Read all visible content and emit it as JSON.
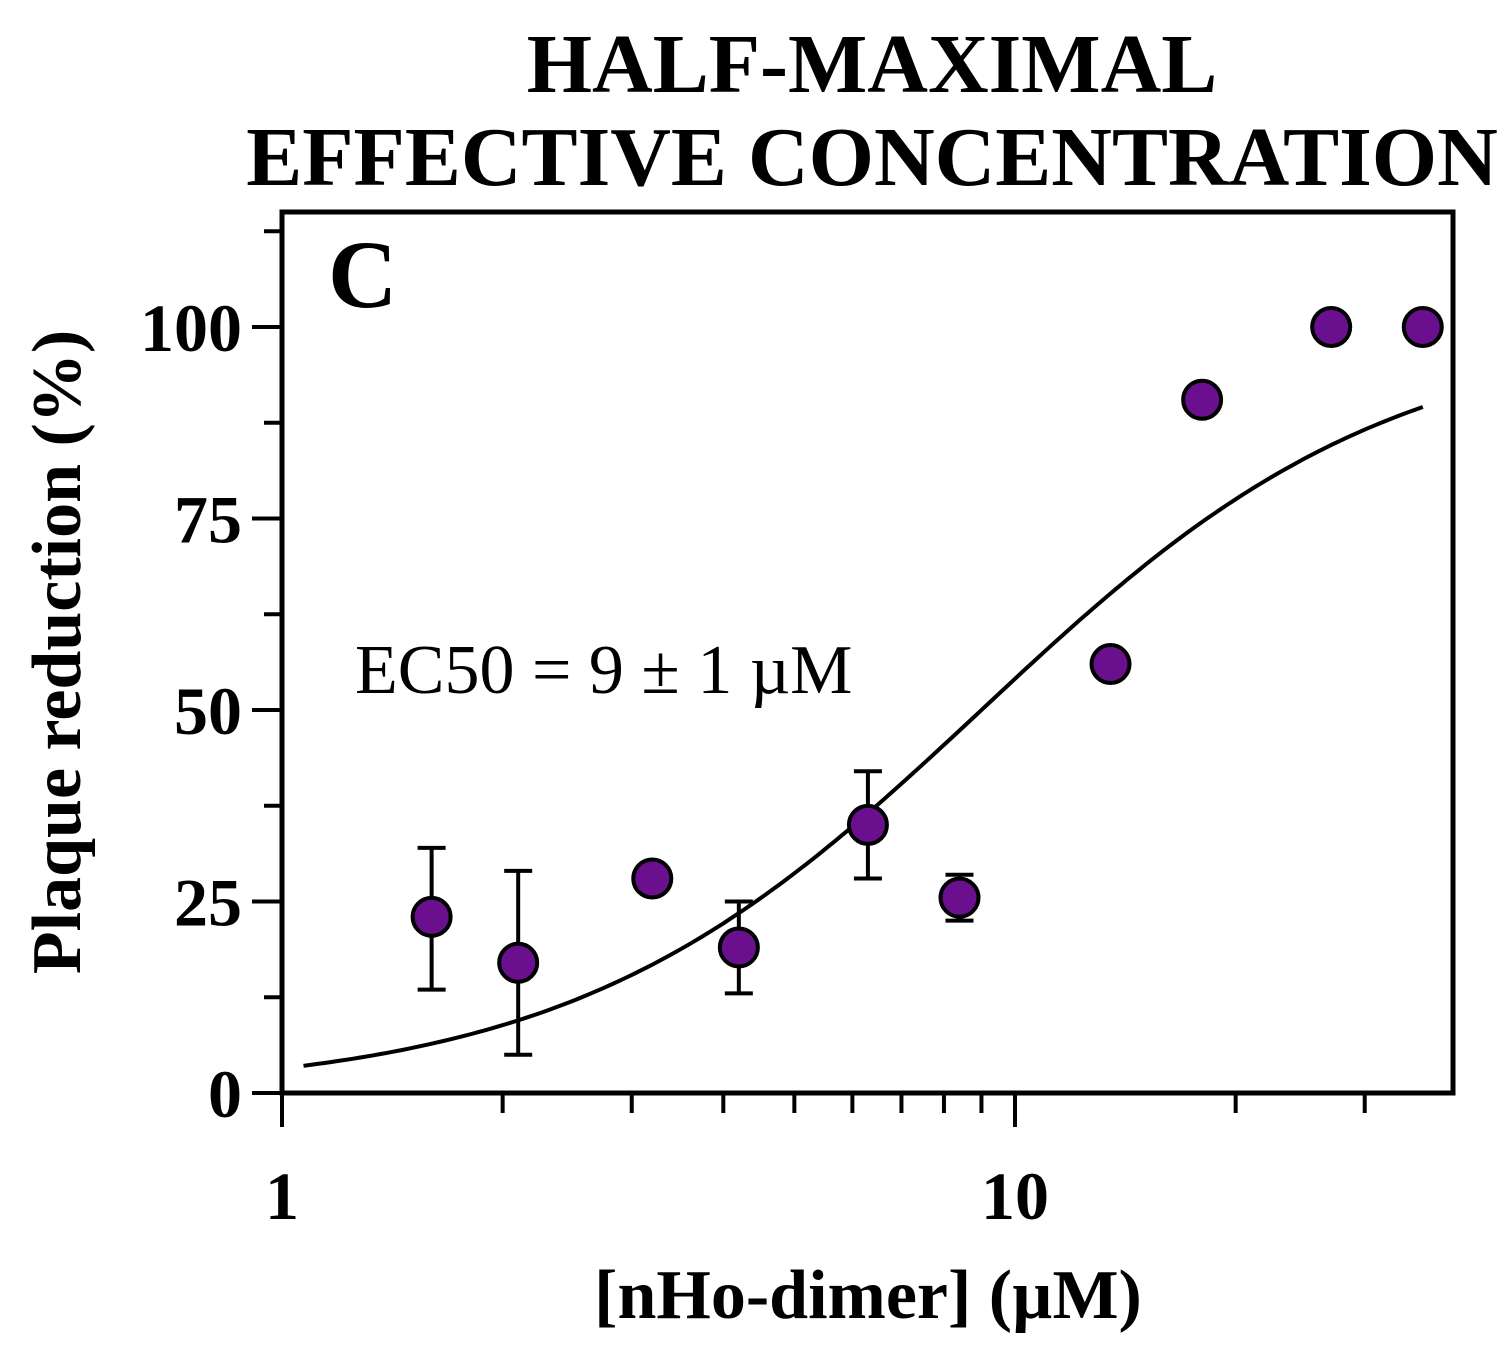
{
  "chart_data": {
    "type": "scatter",
    "title_lines": [
      "HALF-MAXIMAL",
      "EFFECTIVE CONCENTRATION"
    ],
    "panel_label": "C",
    "xlabel": "[nHo-dimer] (µM)",
    "ylabel": "Plaque reduction (%)",
    "xscale": "log",
    "xlim": [
      1,
      40
    ],
    "ylim": [
      0,
      112
    ],
    "x_tick_labels": [
      {
        "value": 1,
        "label": "1"
      },
      {
        "value": 10,
        "label": "10"
      }
    ],
    "x_minor_ticks": [
      2,
      3,
      4,
      5,
      6,
      7,
      8,
      9,
      20,
      30,
      40
    ],
    "y_tick_labels": [
      {
        "value": 0,
        "label": "0"
      },
      {
        "value": 25,
        "label": "25"
      },
      {
        "value": 50,
        "label": "50"
      },
      {
        "value": 75,
        "label": "75"
      },
      {
        "value": 100,
        "label": "100"
      }
    ],
    "y_minor_ticks": [
      12.5,
      37.5,
      62.5,
      87.5,
      112.5
    ],
    "annotation": "EC50 = 9 ± 1 µM",
    "marker_color": "#6a0f8e",
    "points": [
      {
        "x": 1.6,
        "y": 23,
        "err_lo": 9.5,
        "err_hi": 9
      },
      {
        "x": 2.1,
        "y": 17,
        "err_lo": 12,
        "err_hi": 12
      },
      {
        "x": 3.2,
        "y": 28,
        "err_lo": 0,
        "err_hi": 0
      },
      {
        "x": 4.2,
        "y": 19,
        "err_lo": 6,
        "err_hi": 6
      },
      {
        "x": 6.3,
        "y": 35,
        "err_lo": 7,
        "err_hi": 7
      },
      {
        "x": 8.4,
        "y": 25.5,
        "err_lo": 3,
        "err_hi": 3
      },
      {
        "x": 13.5,
        "y": 56,
        "err_lo": 0,
        "err_hi": 0
      },
      {
        "x": 18,
        "y": 90.5,
        "err_lo": 0,
        "err_hi": 0
      },
      {
        "x": 27,
        "y": 100,
        "err_lo": 0,
        "err_hi": 0
      },
      {
        "x": 36,
        "y": 100,
        "err_lo": 0,
        "err_hi": 0
      }
    ],
    "fit": {
      "model": "hill",
      "ec50": 9,
      "hill_slope": 1.55,
      "bottom": 0,
      "top": 100,
      "x_range": [
        1.07,
        36
      ]
    }
  }
}
